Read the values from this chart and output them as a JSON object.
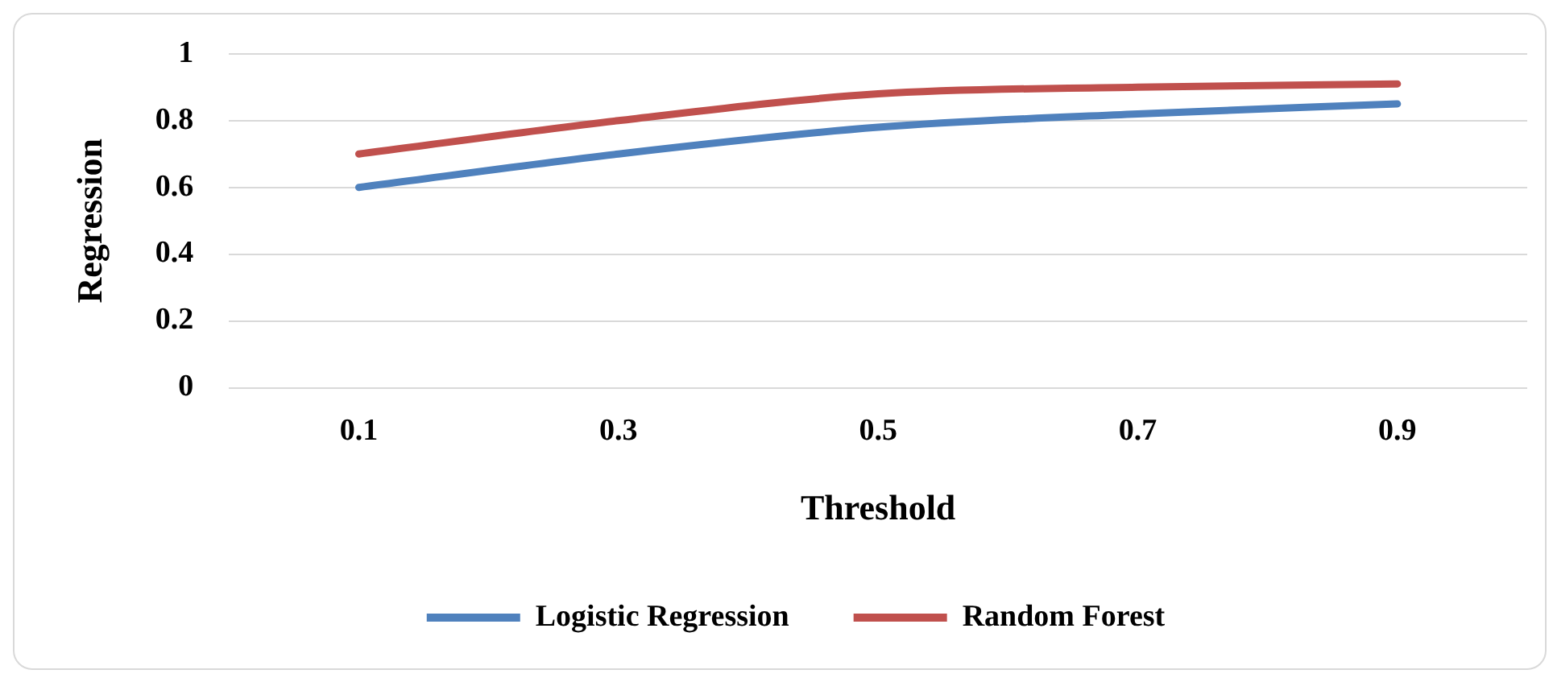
{
  "chart_data": {
    "type": "line",
    "xlabel": "Threshold",
    "ylabel": "Regression",
    "categories": [
      "0.1",
      "0.3",
      "0.5",
      "0.7",
      "0.9"
    ],
    "series": [
      {
        "name": "Logistic Regression",
        "color": "#4f81bd",
        "values": [
          0.6,
          0.7,
          0.78,
          0.82,
          0.85
        ]
      },
      {
        "name": "Random Forest",
        "color": "#c0504d",
        "values": [
          0.7,
          0.8,
          0.88,
          0.9,
          0.91
        ]
      }
    ],
    "ylim": [
      0,
      1
    ],
    "yticks": [
      0,
      0.2,
      0.4,
      0.6,
      0.8,
      1
    ],
    "grid": "y",
    "legend": "bottom",
    "marker": "none"
  }
}
